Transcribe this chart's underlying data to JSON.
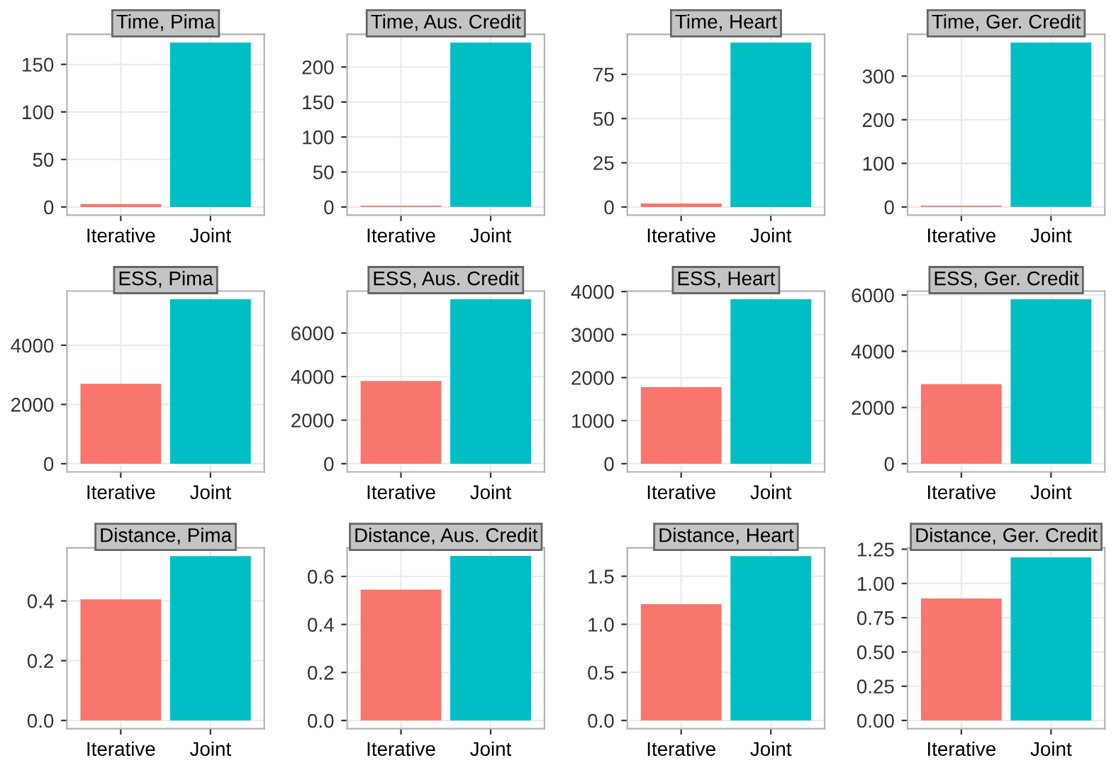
{
  "chart_data": [
    {
      "type": "bar",
      "title": "Time, Pima",
      "categories": [
        "Iterative",
        "Joint"
      ],
      "values": [
        3,
        173
      ],
      "colors": [
        "#f8766d",
        "#00bfc4"
      ],
      "ylim": [
        -8.6,
        181.6
      ],
      "yticks": [
        0,
        50,
        100,
        150
      ],
      "grid": true
    },
    {
      "type": "bar",
      "title": "Time, Aus. Credit",
      "categories": [
        "Iterative",
        "Joint"
      ],
      "values": [
        2,
        235
      ],
      "colors": [
        "#f8766d",
        "#00bfc4"
      ],
      "ylim": [
        -11.7,
        246.7
      ],
      "yticks": [
        0,
        50,
        100,
        150,
        200
      ],
      "grid": true
    },
    {
      "type": "bar",
      "title": "Time, Heart",
      "categories": [
        "Iterative",
        "Joint"
      ],
      "values": [
        2,
        93
      ],
      "colors": [
        "#f8766d",
        "#00bfc4"
      ],
      "ylim": [
        -4.6,
        97.6
      ],
      "yticks": [
        0,
        25,
        50,
        75
      ],
      "grid": true
    },
    {
      "type": "bar",
      "title": "Time, Ger. Credit",
      "categories": [
        "Iterative",
        "Joint"
      ],
      "values": [
        3,
        377
      ],
      "colors": [
        "#f8766d",
        "#00bfc4"
      ],
      "ylim": [
        -18.8,
        395.8
      ],
      "yticks": [
        0,
        100,
        200,
        300
      ],
      "grid": true
    },
    {
      "type": "bar",
      "title": "ESS, Pima",
      "categories": [
        "Iterative",
        "Joint"
      ],
      "values": [
        2700,
        5550
      ],
      "colors": [
        "#f8766d",
        "#00bfc4"
      ],
      "ylim": [
        -277,
        5827
      ],
      "yticks": [
        0,
        2000,
        4000
      ],
      "grid": true
    },
    {
      "type": "bar",
      "title": "ESS, Aus. Credit",
      "categories": [
        "Iterative",
        "Joint"
      ],
      "values": [
        3800,
        7550
      ],
      "colors": [
        "#f8766d",
        "#00bfc4"
      ],
      "ylim": [
        -377,
        7927
      ],
      "yticks": [
        0,
        2000,
        4000,
        6000
      ],
      "grid": true
    },
    {
      "type": "bar",
      "title": "ESS, Heart",
      "categories": [
        "Iterative",
        "Joint"
      ],
      "values": [
        1780,
        3820
      ],
      "colors": [
        "#f8766d",
        "#00bfc4"
      ],
      "ylim": [
        -191,
        4011
      ],
      "yticks": [
        0,
        1000,
        2000,
        3000,
        4000
      ],
      "grid": true
    },
    {
      "type": "bar",
      "title": "ESS, Ger. Credit",
      "categories": [
        "Iterative",
        "Joint"
      ],
      "values": [
        2830,
        5850
      ],
      "colors": [
        "#f8766d",
        "#00bfc4"
      ],
      "ylim": [
        -292,
        6142
      ],
      "yticks": [
        0,
        2000,
        4000,
        6000
      ],
      "grid": true
    },
    {
      "type": "bar",
      "title": "Distance, Pima",
      "categories": [
        "Iterative",
        "Joint"
      ],
      "values": [
        0.405,
        0.55
      ],
      "colors": [
        "#f8766d",
        "#00bfc4"
      ],
      "ylim": [
        -0.0275,
        0.5775
      ],
      "yticks": [
        {
          "value": 0,
          "label": "0.0"
        },
        0.2,
        0.4
      ],
      "grid": true
    },
    {
      "type": "bar",
      "title": "Distance, Aus. Credit",
      "categories": [
        "Iterative",
        "Joint"
      ],
      "values": [
        0.545,
        0.685
      ],
      "colors": [
        "#f8766d",
        "#00bfc4"
      ],
      "ylim": [
        -0.034,
        0.719
      ],
      "yticks": [
        {
          "value": 0,
          "label": "0.0"
        },
        0.2,
        0.4,
        0.6
      ],
      "grid": true
    },
    {
      "type": "bar",
      "title": "Distance, Heart",
      "categories": [
        "Iterative",
        "Joint"
      ],
      "values": [
        1.21,
        1.71
      ],
      "colors": [
        "#f8766d",
        "#00bfc4"
      ],
      "ylim": [
        -0.0855,
        1.7955
      ],
      "yticks": [
        {
          "value": 0,
          "label": "0.0"
        },
        0.5,
        {
          "value": 1,
          "label": "1.0"
        },
        1.5
      ],
      "grid": true
    },
    {
      "type": "bar",
      "title": "Distance, Ger. Credit",
      "categories": [
        "Iterative",
        "Joint"
      ],
      "values": [
        0.89,
        1.19
      ],
      "colors": [
        "#f8766d",
        "#00bfc4"
      ],
      "ylim": [
        -0.06,
        1.26
      ],
      "yticks": [
        {
          "value": 0,
          "label": "0.00"
        },
        0.25,
        {
          "value": 0.5,
          "label": "0.50"
        },
        0.75,
        {
          "value": 1,
          "label": "1.00"
        },
        1.25
      ],
      "grid": true
    }
  ]
}
